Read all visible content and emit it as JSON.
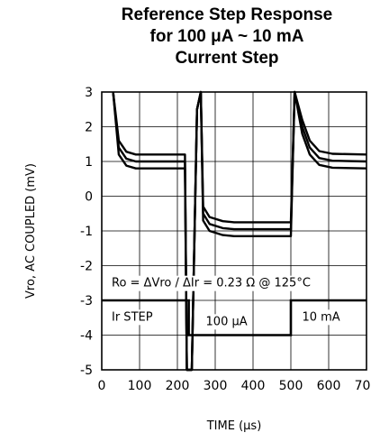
{
  "chart_data": {
    "type": "line",
    "title": "Reference Step Response",
    "subtitle_lines": [
      "for 100 μA ~ 10 mA",
      "Current Step"
    ],
    "xlabel": "TIME (μs)",
    "ylabel": "Vro, AC COUPLED (mV)",
    "xlim": [
      0,
      700
    ],
    "ylim": [
      -5,
      3
    ],
    "xticks": [
      0,
      100,
      200,
      300,
      400,
      500,
      600,
      700
    ],
    "yticks": [
      3,
      2,
      1,
      0,
      -1,
      -2,
      -3,
      -4,
      -5
    ],
    "grid": true,
    "annotations": {
      "formula": "Ro = ΔVro / ΔIr = 0.23 Ω @ 125°C",
      "step_label": "Ir STEP",
      "low_level": "100 μA",
      "high_level": "10 mA"
    },
    "series": [
      {
        "values": [
          [
            30,
            3
          ],
          [
            45,
            1.6
          ],
          [
            65,
            1.28
          ],
          [
            90,
            1.2
          ],
          [
            220,
            1.2
          ],
          [
            225,
            -5
          ],
          [
            238,
            -5
          ],
          [
            252,
            2.5
          ],
          [
            262,
            3
          ],
          [
            268,
            -0.3
          ],
          [
            285,
            -0.6
          ],
          [
            320,
            -0.72
          ],
          [
            350,
            -0.75
          ],
          [
            500,
            -0.75
          ],
          [
            510,
            3
          ],
          [
            530,
            2.2
          ],
          [
            550,
            1.6
          ],
          [
            575,
            1.3
          ],
          [
            610,
            1.22
          ],
          [
            700,
            1.2
          ]
        ]
      },
      {
        "values": [
          [
            30,
            3
          ],
          [
            45,
            1.4
          ],
          [
            65,
            1.08
          ],
          [
            90,
            1.0
          ],
          [
            220,
            1.0
          ],
          [
            225,
            -5
          ],
          [
            238,
            -5
          ],
          [
            252,
            2.5
          ],
          [
            262,
            3
          ],
          [
            268,
            -0.5
          ],
          [
            285,
            -0.8
          ],
          [
            320,
            -0.92
          ],
          [
            350,
            -0.95
          ],
          [
            500,
            -0.95
          ],
          [
            510,
            3
          ],
          [
            530,
            2.0
          ],
          [
            550,
            1.4
          ],
          [
            575,
            1.1
          ],
          [
            610,
            1.02
          ],
          [
            700,
            1.0
          ]
        ]
      },
      {
        "values": [
          [
            30,
            3
          ],
          [
            45,
            1.2
          ],
          [
            65,
            0.88
          ],
          [
            90,
            0.8
          ],
          [
            220,
            0.8
          ],
          [
            225,
            -5
          ],
          [
            238,
            -5
          ],
          [
            252,
            2.5
          ],
          [
            262,
            3
          ],
          [
            268,
            -0.7
          ],
          [
            285,
            -1.0
          ],
          [
            320,
            -1.12
          ],
          [
            350,
            -1.15
          ],
          [
            500,
            -1.15
          ],
          [
            510,
            3
          ],
          [
            530,
            1.8
          ],
          [
            550,
            1.2
          ],
          [
            575,
            0.9
          ],
          [
            610,
            0.82
          ],
          [
            700,
            0.8
          ]
        ]
      }
    ],
    "step_signal": {
      "values": [
        [
          0,
          -3
        ],
        [
          230,
          -3
        ],
        [
          230,
          -4
        ],
        [
          500,
          -4
        ],
        [
          500,
          -3
        ],
        [
          700,
          -3
        ]
      ]
    }
  }
}
